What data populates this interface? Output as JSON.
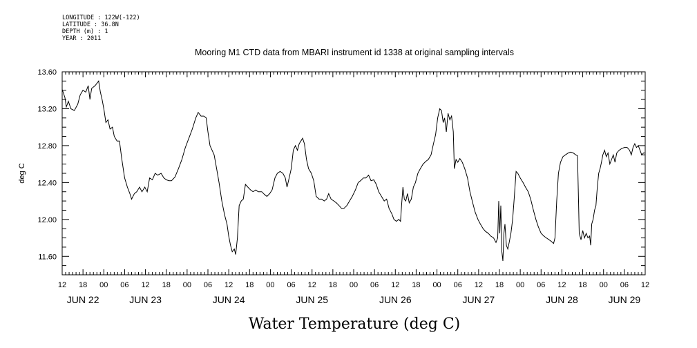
{
  "meta": {
    "longitude": "LONGITUDE : 122W(-122)",
    "latitude": "LATITUDE : 36.8N",
    "depth": "DEPTH (m) : 1",
    "year": "YEAR : 2011"
  },
  "chart_data": {
    "type": "line",
    "title": "Mooring M1 CTD data from MBARI instrument id 1338 at original sampling intervals",
    "xlabel": "Water Temperature (deg C)",
    "ylabel": "deg C",
    "ylim": [
      11.4,
      13.6
    ],
    "yticks": [
      "13.60",
      "13.20",
      "12.80",
      "12.40",
      "12.00",
      "11.60"
    ],
    "xlim_hours": [
      0,
      168
    ],
    "hour_ticks": [
      "12",
      "18",
      "00",
      "06",
      "12",
      "18",
      "00",
      "06",
      "12",
      "18",
      "00",
      "06",
      "12",
      "18",
      "00",
      "06",
      "12",
      "18",
      "00",
      "06",
      "12",
      "18",
      "00",
      "06",
      "12",
      "18",
      "00",
      "06",
      "12"
    ],
    "date_labels": [
      "JUN 22",
      "JUN 23",
      "JUN 24",
      "JUN 25",
      "JUN 26",
      "JUN 27",
      "JUN 28",
      "JUN 29"
    ],
    "date_label_hours": [
      6,
      24,
      48,
      72,
      96,
      120,
      144,
      162
    ],
    "series": [
      {
        "values": [
          [
            0.0,
            13.41
          ],
          [
            0.8,
            13.32
          ],
          [
            1.2,
            13.22
          ],
          [
            1.8,
            13.28
          ],
          [
            2.5,
            13.2
          ],
          [
            3.5,
            13.18
          ],
          [
            4.5,
            13.25
          ],
          [
            5.2,
            13.35
          ],
          [
            6.0,
            13.4
          ],
          [
            6.8,
            13.38
          ],
          [
            7.5,
            13.45
          ],
          [
            8.0,
            13.3
          ],
          [
            8.5,
            13.42
          ],
          [
            9.5,
            13.45
          ],
          [
            10.5,
            13.5
          ],
          [
            11.0,
            13.38
          ],
          [
            11.5,
            13.3
          ],
          [
            12.0,
            13.2
          ],
          [
            12.6,
            13.05
          ],
          [
            13.2,
            13.08
          ],
          [
            13.8,
            12.98
          ],
          [
            14.5,
            13.0
          ],
          [
            15.0,
            12.9
          ],
          [
            15.8,
            12.85
          ],
          [
            16.5,
            12.85
          ],
          [
            17.2,
            12.65
          ],
          [
            18.0,
            12.45
          ],
          [
            18.8,
            12.35
          ],
          [
            19.5,
            12.28
          ],
          [
            20.0,
            12.22
          ],
          [
            20.8,
            12.28
          ],
          [
            21.5,
            12.3
          ],
          [
            22.3,
            12.35
          ],
          [
            23.0,
            12.3
          ],
          [
            23.8,
            12.35
          ],
          [
            24.5,
            12.3
          ],
          [
            25.2,
            12.45
          ],
          [
            26.0,
            12.43
          ],
          [
            26.8,
            12.5
          ],
          [
            27.5,
            12.48
          ],
          [
            28.5,
            12.5
          ],
          [
            29.3,
            12.45
          ],
          [
            30.0,
            12.43
          ],
          [
            30.8,
            12.42
          ],
          [
            31.5,
            12.42
          ],
          [
            32.5,
            12.46
          ],
          [
            33.5,
            12.55
          ],
          [
            34.5,
            12.65
          ],
          [
            35.5,
            12.78
          ],
          [
            36.5,
            12.88
          ],
          [
            37.5,
            12.98
          ],
          [
            38.5,
            13.1
          ],
          [
            39.2,
            13.16
          ],
          [
            40.0,
            13.12
          ],
          [
            40.8,
            13.12
          ],
          [
            41.5,
            13.1
          ],
          [
            42.0,
            12.95
          ],
          [
            42.6,
            12.8
          ],
          [
            43.2,
            12.75
          ],
          [
            43.8,
            12.7
          ],
          [
            44.5,
            12.55
          ],
          [
            45.2,
            12.4
          ],
          [
            46.0,
            12.2
          ],
          [
            46.8,
            12.05
          ],
          [
            47.5,
            11.95
          ],
          [
            48.0,
            11.82
          ],
          [
            48.5,
            11.72
          ],
          [
            49.0,
            11.65
          ],
          [
            49.6,
            11.68
          ],
          [
            50.0,
            11.62
          ],
          [
            50.5,
            11.8
          ],
          [
            51.0,
            12.15
          ],
          [
            51.6,
            12.2
          ],
          [
            52.2,
            12.22
          ],
          [
            52.8,
            12.38
          ],
          [
            53.5,
            12.35
          ],
          [
            54.3,
            12.32
          ],
          [
            55.0,
            12.3
          ],
          [
            55.8,
            12.32
          ],
          [
            56.5,
            12.3
          ],
          [
            57.5,
            12.3
          ],
          [
            58.3,
            12.27
          ],
          [
            59.0,
            12.25
          ],
          [
            59.8,
            12.28
          ],
          [
            60.5,
            12.32
          ],
          [
            61.3,
            12.45
          ],
          [
            62.0,
            12.5
          ],
          [
            62.8,
            12.52
          ],
          [
            63.6,
            12.5
          ],
          [
            64.3,
            12.45
          ],
          [
            64.8,
            12.35
          ],
          [
            65.4,
            12.45
          ],
          [
            66.0,
            12.55
          ],
          [
            66.6,
            12.75
          ],
          [
            67.2,
            12.8
          ],
          [
            67.8,
            12.75
          ],
          [
            68.3,
            12.82
          ],
          [
            68.8,
            12.85
          ],
          [
            69.3,
            12.88
          ],
          [
            69.8,
            12.82
          ],
          [
            70.4,
            12.65
          ],
          [
            71.0,
            12.55
          ],
          [
            71.8,
            12.5
          ],
          [
            72.5,
            12.42
          ],
          [
            73.2,
            12.25
          ],
          [
            74.0,
            12.22
          ],
          [
            74.8,
            12.22
          ],
          [
            75.5,
            12.2
          ],
          [
            76.2,
            12.22
          ],
          [
            76.8,
            12.28
          ],
          [
            77.5,
            12.22
          ],
          [
            78.3,
            12.2
          ],
          [
            79.0,
            12.18
          ],
          [
            79.8,
            12.15
          ],
          [
            80.5,
            12.12
          ],
          [
            81.2,
            12.12
          ],
          [
            82.0,
            12.15
          ],
          [
            82.8,
            12.2
          ],
          [
            83.6,
            12.25
          ],
          [
            84.5,
            12.32
          ],
          [
            85.3,
            12.4
          ],
          [
            86.0,
            12.42
          ],
          [
            86.8,
            12.45
          ],
          [
            87.5,
            12.45
          ],
          [
            88.3,
            12.48
          ],
          [
            89.0,
            12.42
          ],
          [
            89.8,
            12.43
          ],
          [
            90.5,
            12.38
          ],
          [
            91.2,
            12.3
          ],
          [
            92.0,
            12.25
          ],
          [
            92.8,
            12.2
          ],
          [
            93.5,
            12.22
          ],
          [
            94.2,
            12.12
          ],
          [
            95.0,
            12.06
          ],
          [
            95.6,
            12.0
          ],
          [
            96.3,
            11.98
          ],
          [
            97.0,
            12.0
          ],
          [
            97.5,
            11.98
          ],
          [
            97.8,
            12.15
          ],
          [
            98.2,
            12.35
          ],
          [
            98.6,
            12.22
          ],
          [
            99.0,
            12.2
          ],
          [
            99.5,
            12.28
          ],
          [
            100.0,
            12.18
          ],
          [
            100.6,
            12.22
          ],
          [
            101.2,
            12.35
          ],
          [
            101.8,
            12.4
          ],
          [
            102.5,
            12.5
          ],
          [
            103.2,
            12.55
          ],
          [
            104.0,
            12.6
          ],
          [
            104.8,
            12.63
          ],
          [
            105.5,
            12.65
          ],
          [
            106.3,
            12.7
          ],
          [
            107.0,
            12.82
          ],
          [
            107.6,
            12.92
          ],
          [
            108.2,
            13.1
          ],
          [
            108.8,
            13.2
          ],
          [
            109.3,
            13.18
          ],
          [
            109.8,
            13.05
          ],
          [
            110.2,
            13.1
          ],
          [
            110.7,
            12.95
          ],
          [
            111.2,
            13.15
          ],
          [
            111.7,
            13.08
          ],
          [
            112.2,
            13.12
          ],
          [
            112.7,
            12.95
          ],
          [
            113.0,
            12.55
          ],
          [
            113.5,
            12.65
          ],
          [
            114.0,
            12.62
          ],
          [
            114.6,
            12.66
          ],
          [
            115.3,
            12.62
          ],
          [
            116.0,
            12.55
          ],
          [
            116.8,
            12.45
          ],
          [
            117.5,
            12.3
          ],
          [
            118.3,
            12.18
          ],
          [
            119.0,
            12.08
          ],
          [
            119.8,
            12.0
          ],
          [
            120.5,
            11.95
          ],
          [
            121.3,
            11.9
          ],
          [
            122.0,
            11.87
          ],
          [
            122.8,
            11.85
          ],
          [
            123.5,
            11.82
          ],
          [
            124.3,
            11.8
          ],
          [
            125.0,
            11.75
          ],
          [
            125.5,
            11.8
          ],
          [
            125.8,
            12.2
          ],
          [
            126.1,
            11.85
          ],
          [
            126.4,
            12.15
          ],
          [
            126.7,
            11.65
          ],
          [
            127.0,
            11.55
          ],
          [
            127.3,
            11.85
          ],
          [
            127.6,
            11.95
          ],
          [
            128.0,
            11.72
          ],
          [
            128.4,
            11.68
          ],
          [
            128.8,
            11.75
          ],
          [
            129.3,
            11.85
          ],
          [
            129.8,
            12.0
          ],
          [
            130.3,
            12.25
          ],
          [
            130.8,
            12.52
          ],
          [
            131.3,
            12.5
          ],
          [
            132.0,
            12.45
          ],
          [
            132.8,
            12.4
          ],
          [
            133.5,
            12.35
          ],
          [
            134.3,
            12.3
          ],
          [
            135.0,
            12.22
          ],
          [
            135.8,
            12.1
          ],
          [
            136.5,
            12.0
          ],
          [
            137.2,
            11.92
          ],
          [
            138.0,
            11.85
          ],
          [
            138.8,
            11.82
          ],
          [
            139.5,
            11.8
          ],
          [
            140.3,
            11.78
          ],
          [
            141.0,
            11.76
          ],
          [
            141.6,
            11.74
          ],
          [
            142.0,
            11.8
          ],
          [
            142.5,
            12.2
          ],
          [
            143.0,
            12.5
          ],
          [
            143.6,
            12.62
          ],
          [
            144.3,
            12.68
          ],
          [
            145.0,
            12.7
          ],
          [
            145.8,
            12.72
          ],
          [
            146.5,
            12.73
          ],
          [
            147.3,
            12.72
          ],
          [
            148.0,
            12.7
          ],
          [
            148.5,
            12.69
          ],
          [
            148.8,
            12.2
          ],
          [
            149.0,
            11.85
          ],
          [
            149.5,
            11.78
          ],
          [
            150.0,
            11.88
          ],
          [
            150.5,
            11.8
          ],
          [
            151.0,
            11.85
          ],
          [
            151.5,
            11.8
          ],
          [
            152.0,
            11.82
          ],
          [
            152.3,
            11.72
          ],
          [
            152.6,
            11.95
          ],
          [
            153.0,
            12.0
          ],
          [
            153.4,
            12.1
          ],
          [
            153.8,
            12.15
          ],
          [
            154.2,
            12.35
          ],
          [
            154.6,
            12.5
          ],
          [
            155.0,
            12.55
          ],
          [
            155.4,
            12.62
          ],
          [
            155.8,
            12.7
          ],
          [
            156.3,
            12.75
          ],
          [
            156.8,
            12.68
          ],
          [
            157.3,
            12.72
          ],
          [
            157.8,
            12.6
          ],
          [
            158.3,
            12.65
          ],
          [
            158.8,
            12.7
          ],
          [
            159.3,
            12.62
          ],
          [
            159.8,
            12.72
          ],
          [
            160.5,
            12.75
          ],
          [
            161.3,
            12.77
          ],
          [
            162.0,
            12.78
          ],
          [
            162.8,
            12.78
          ],
          [
            163.5,
            12.75
          ],
          [
            164.0,
            12.7
          ],
          [
            164.5,
            12.78
          ],
          [
            165.0,
            12.82
          ],
          [
            165.5,
            12.78
          ],
          [
            166.0,
            12.8
          ],
          [
            166.5,
            12.75
          ],
          [
            167.0,
            12.7
          ],
          [
            167.5,
            12.72
          ],
          [
            168.0,
            12.72
          ]
        ]
      }
    ]
  }
}
